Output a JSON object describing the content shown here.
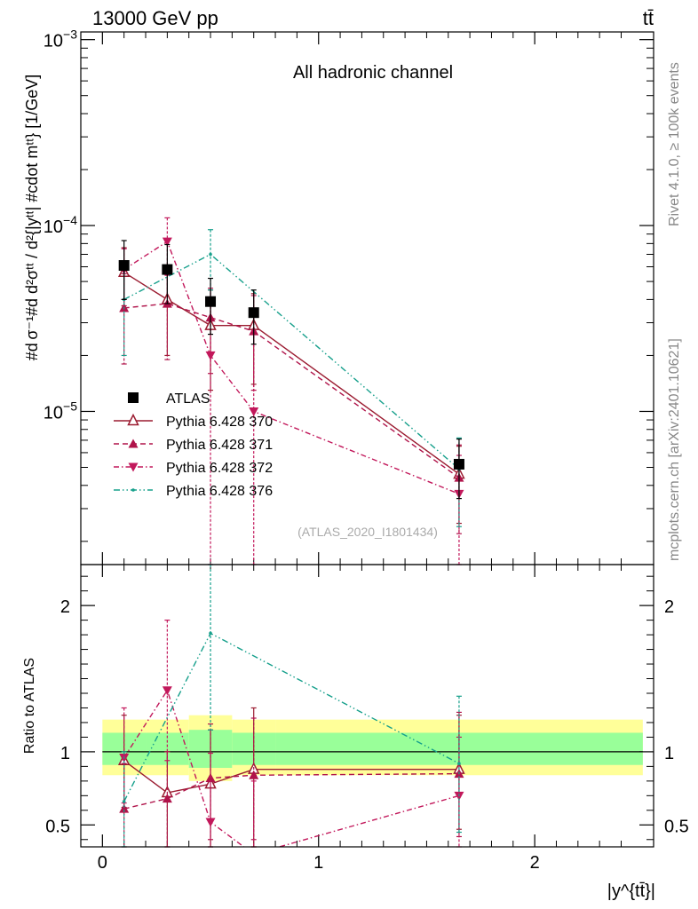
{
  "header": {
    "left": "13000 GeV pp",
    "right": "tt̄"
  },
  "side": {
    "rivet": "Rivet 4.1.0, ≥ 100k events",
    "mcplots": "mcplots.cern.ch [arXiv:2401.10621]"
  },
  "chart_data": [
    {
      "type": "scatter",
      "title": "All hadronic channel",
      "analysis_id": "(ATLAS_2020_I1801434)",
      "ylabel": "#d σ⁻¹#d d²σᵗᵗ / d²{|yᵗᵗ| #cdot mᵗᵗ} [1/GeV]",
      "yscale": "log",
      "ylim": [
        1.5e-06,
        0.0011
      ],
      "xlim": [
        -0.1,
        2.55
      ],
      "y_tick_labels": [
        {
          "value": 0.001,
          "mantissa": "10",
          "exp": "−3"
        },
        {
          "value": 0.0001,
          "mantissa": "10",
          "exp": "−4"
        },
        {
          "value": 1e-05,
          "mantissa": "10",
          "exp": "−5"
        }
      ],
      "x": [
        0.1,
        0.3,
        0.5,
        0.7,
        1.65
      ],
      "series": [
        {
          "name": "ATLAS",
          "color": "#000000",
          "style": "data",
          "values": [
            6.1e-05,
            5.8e-05,
            3.9e-05,
            3.4e-05,
            5.2e-06
          ],
          "err_up": [
            8.3e-05,
            7.9e-05,
            5.2e-05,
            4.5e-05,
            7.1e-06
          ],
          "err_down": [
            4e-05,
            3.8e-05,
            2.6e-05,
            2.3e-05,
            3.4e-06
          ]
        },
        {
          "name": "Pythia 6.428 370",
          "color": "#9b1c31",
          "style": "solid-open-triangle",
          "values": [
            5.6e-05,
            4e-05,
            2.9e-05,
            2.9e-05,
            4.6e-06
          ],
          "err_up": [
            7.6e-05,
            5.6e-05,
            4.5e-05,
            4.3e-05,
            6.5e-06
          ],
          "err_down": [
            3.7e-05,
            2e-05,
            1.3e-05,
            1.4e-05,
            2.5e-06
          ]
        },
        {
          "name": "Pythia 6.428 371",
          "color": "#b0134a",
          "style": "dashed-triangle",
          "values": [
            3.6e-05,
            3.8e-05,
            3.2e-05,
            2.7e-05,
            4.4e-06
          ],
          "err_up": [
            5.5e-05,
            5.8e-05,
            4.6e-05,
            4.2e-05,
            6.6e-06
          ],
          "err_down": [
            1.8e-05,
            1.9e-05,
            1.6e-05,
            1.3e-05,
            2.2e-06
          ]
        },
        {
          "name": "Pythia 6.428 372",
          "color": "#c2185b",
          "style": "dashdot-down-triangle",
          "values": [
            5.8e-05,
            8.2e-05,
            2e-05,
            1e-05,
            3.6e-06
          ],
          "err_up": [
            7.5e-05,
            0.00011,
            3.9e-05,
            2.7e-05,
            5.8e-06
          ],
          "err_down": [
            4e-05,
            5.4e-05,
            1.5e-06,
            1.5e-06,
            1.5e-06
          ]
        },
        {
          "name": "Pythia 6.428 376",
          "color": "#17a08c",
          "style": "dashdot-dot",
          "values": [
            4e-05,
            null,
            7e-05,
            null,
            4.9e-06
          ],
          "err_up": [
            6e-05,
            null,
            9.5e-05,
            null,
            7.2e-06
          ],
          "err_down": [
            2e-05,
            null,
            4.5e-05,
            null,
            2.4e-06
          ]
        }
      ]
    },
    {
      "type": "scatter",
      "ylabel": "Ratio to ATLAS",
      "xlabel": "|y^{tt̄}|",
      "ylim": [
        0.35,
        2.28
      ],
      "xlim": [
        -0.1,
        2.55
      ],
      "y_ticks": [
        0.5,
        1,
        2
      ],
      "y_tick_labels": [
        "0.5",
        "1",
        "2"
      ],
      "x_ticks": [
        0,
        1,
        2
      ],
      "x_tick_labels": [
        "0",
        "1",
        "2"
      ],
      "bands": {
        "edges": [
          0,
          0.2,
          0.4,
          0.6,
          0.8,
          2.5
        ],
        "outer_up": [
          1.22,
          1.22,
          1.25,
          1.22,
          1.22
        ],
        "outer_down": [
          0.84,
          0.84,
          0.8,
          0.84,
          0.84
        ],
        "inner_up": [
          1.13,
          1.13,
          1.15,
          1.13,
          1.13
        ],
        "inner_down": [
          0.91,
          0.91,
          0.89,
          0.91,
          0.91
        ],
        "outer_color": "#ffff99",
        "inner_color": "#99ff99"
      },
      "series": [
        {
          "name": "Pythia 6.428 370",
          "color": "#9b1c31",
          "style": "solid-open-triangle",
          "values": [
            0.94,
            0.72,
            0.78,
            0.88,
            0.88
          ],
          "err_up": [
            1.25,
            1.0,
            1.15,
            1.3,
            1.25
          ],
          "err_down": [
            0.62,
            0.3,
            0.32,
            0.35,
            0.47
          ]
        },
        {
          "name": "Pythia 6.428 371",
          "color": "#b0134a",
          "style": "dashed-triangle",
          "values": [
            0.61,
            0.68,
            0.82,
            0.84,
            0.85
          ],
          "err_up": [
            0.92,
            1.0,
            1.19,
            1.23,
            1.27
          ],
          "err_down": [
            0.3,
            0.33,
            0.4,
            0.4,
            0.42
          ]
        },
        {
          "name": "Pythia 6.428 372",
          "color": "#c2185b",
          "style": "dashdot-down-triangle",
          "values": [
            0.96,
            1.42,
            0.52,
            0.3,
            0.7
          ],
          "err_up": [
            1.3,
            1.9,
            0.99,
            0.8,
            1.1
          ],
          "err_down": [
            0.65,
            0.94,
            0.1,
            0.1,
            0.3
          ]
        },
        {
          "name": "Pythia 6.428 376",
          "color": "#17a08c",
          "style": "dashdot-dot",
          "values": [
            0.66,
            null,
            1.81,
            null,
            0.92
          ],
          "err_up": [
            1.0,
            null,
            2.45,
            null,
            1.38
          ],
          "err_down": [
            0.32,
            null,
            1.15,
            null,
            0.45
          ]
        }
      ]
    }
  ]
}
